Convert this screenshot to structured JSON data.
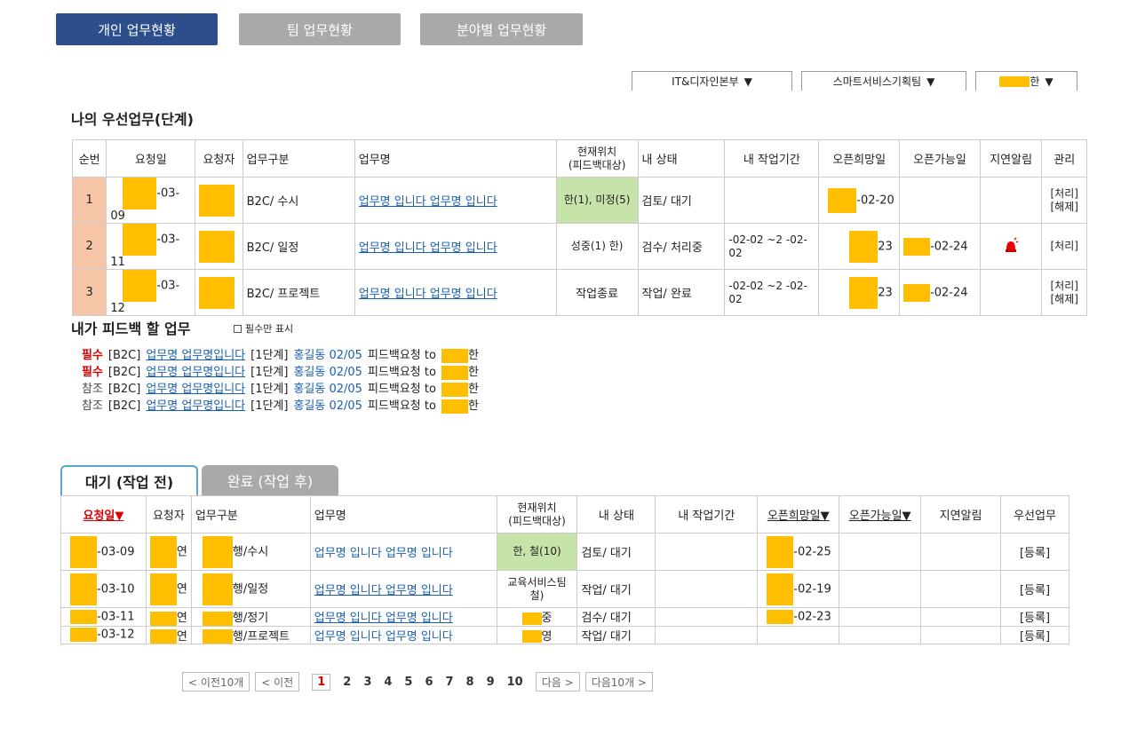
{
  "top_tabs": [
    "개인 업무현황",
    "팀 업무현황",
    "분야별 업무현황"
  ],
  "filters": {
    "division": "IT&디자인본부",
    "team": "스마트서비스기획팀",
    "person_suffix": "한",
    "arrow": "▼"
  },
  "priority": {
    "title": "나의 우선업무(단계)",
    "headers": [
      "순번",
      "요청일",
      "요청자",
      "업무구분",
      "업무명",
      "현재위치\n(피드백대상)",
      "내 상태",
      "내 작업기간",
      "오픈희망일",
      "오픈가능일",
      "지연알림",
      "관리"
    ],
    "rows": [
      {
        "no": "1",
        "date": "-03-09",
        "category": "B2C/ 수시",
        "task": "업무명 입니다 업무명 입니다",
        "location": "한(1), 미정(5)",
        "status": "검토/ 대기",
        "period": "",
        "hope": "-02-20",
        "possible": "",
        "alert": "",
        "manage": "[처리] [해제]"
      },
      {
        "no": "2",
        "date": "-03-11",
        "category": "B2C/ 일정",
        "task": "업무명 입니다 업무명 입니다",
        "location": "성중(1) 한)",
        "status": "검수/ 처리중",
        "period": "-02-02 ~2 -02-02",
        "hope": "23",
        "possible": "-02-24",
        "alert": "siren",
        "manage": "[처리]"
      },
      {
        "no": "3",
        "date": "-03-12",
        "category": "B2C/ 프로젝트",
        "task": "업무명 입니다 업무명 입니다",
        "location": "작업종료",
        "status": "작업/ 완료",
        "period": "-02-02 ~2 -02-02",
        "hope": "23",
        "possible": "-02-24",
        "alert": "",
        "manage": "[처리] [해제]"
      }
    ]
  },
  "feedback": {
    "title": "내가 피드백 할 업무",
    "checkbox_label": "필수만 표시",
    "items": [
      {
        "type": "필수",
        "tag": "[B2C]",
        "task": "업무명 업무명입니다",
        "stage": "[1단계]",
        "person": "홍길동 02/05",
        "action": "피드백요청 to",
        "target": "한"
      },
      {
        "type": "필수",
        "tag": "[B2C]",
        "task": "업무명 업무명입니다",
        "stage": "[1단계]",
        "person": "홍길동 02/05",
        "action": "피드백요청 to",
        "target": "한"
      },
      {
        "type": "참조",
        "tag": "[B2C]",
        "task": "업무명 업무명입니다",
        "stage": "[1단계]",
        "person": "홍길동 02/05",
        "action": "피드백요청 to",
        "target": "한"
      },
      {
        "type": "참조",
        "tag": "[B2C]",
        "task": "업무명 업무명입니다",
        "stage": "[1단계]",
        "person": "홍길동 02/05",
        "action": "피드백요청 to",
        "target": "한"
      }
    ]
  },
  "tabs": {
    "active": "대기 (작업 전)",
    "inactive": "완료 (작업 후)"
  },
  "waiting": {
    "headers": [
      "요청일▼",
      "요청자",
      "업무구분",
      "업무명",
      "현재위치\n(피드백대상)",
      "내 상태",
      "내 작업기간",
      "오픈희망일▼",
      "오픈가능일▼",
      "지연알림",
      "우선업무"
    ],
    "rows": [
      {
        "date": "-03-09",
        "requester": "연",
        "category": "행/수시",
        "task": "업무명 입니다 업무명 입니다",
        "location": "한, 철(10)",
        "status": "검토/ 대기",
        "hope": "-02-25",
        "action": "[등록]"
      },
      {
        "date": "-03-10",
        "requester": "연",
        "category": "행/일정",
        "task": "업무명 입니다 업무명 입니다",
        "location": "교육서비스팀 철)",
        "status": "작업/ 대기",
        "hope": "-02-19",
        "action": "[등록]"
      },
      {
        "date": "-03-11",
        "requester": "연",
        "category": "행/정기",
        "task": "업무명 입니다 업무명 입니다",
        "location": "중",
        "status": "검수/ 대기",
        "hope": "-02-23",
        "action": "[등록]"
      },
      {
        "date": "-03-12",
        "requester": "연",
        "category": "행/프로젝트",
        "task": "업무명 입니다 업무명 입니다",
        "location": "영",
        "status": "작업/ 대기",
        "hope": "",
        "action": "[등록]"
      }
    ]
  },
  "pager": {
    "first": "< 이전10개",
    "prev": "< 이전",
    "pages": [
      "1",
      "2",
      "3",
      "4",
      "5",
      "6",
      "7",
      "8",
      "9",
      "10"
    ],
    "next": "다음 >",
    "next10": "다음10개 >"
  }
}
